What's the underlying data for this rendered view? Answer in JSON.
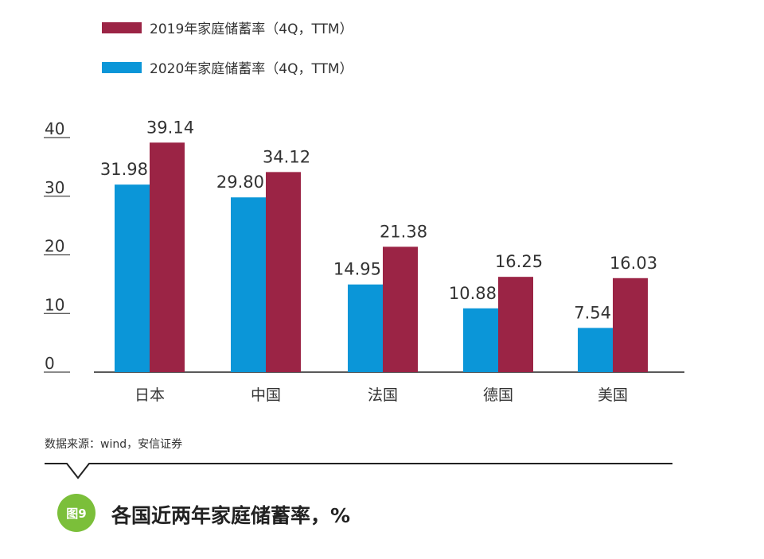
{
  "chart_data": {
    "type": "bar",
    "categories": [
      "日本",
      "中国",
      "法国",
      "德国",
      "美国"
    ],
    "series": [
      {
        "name": "2020年家庭储蓄率（4Q，TTM）",
        "color": "#0b96d8",
        "values": [
          31.98,
          29.8,
          14.95,
          10.88,
          7.54
        ]
      },
      {
        "name": "2019年家庭储蓄率（4Q，TTM）",
        "color": "#9b2445",
        "values": [
          39.14,
          34.12,
          21.38,
          16.25,
          16.03
        ]
      }
    ],
    "value_labels": [
      [
        "31.98",
        "29.80",
        "14.95",
        "10.88",
        "7.54"
      ],
      [
        "39.14",
        "34.12",
        "21.38",
        "16.25",
        "16.03"
      ]
    ],
    "yticks": [
      "0",
      "10",
      "20",
      "30",
      "40"
    ],
    "ylim": [
      0,
      40
    ],
    "legend": {
      "placement": "top-left",
      "order": [
        1,
        0
      ]
    },
    "grid": false
  },
  "source_text": "数据来源：wind，安信证券",
  "figure_badge": "图9",
  "figure_title": "各国近两年家庭储蓄率，%"
}
